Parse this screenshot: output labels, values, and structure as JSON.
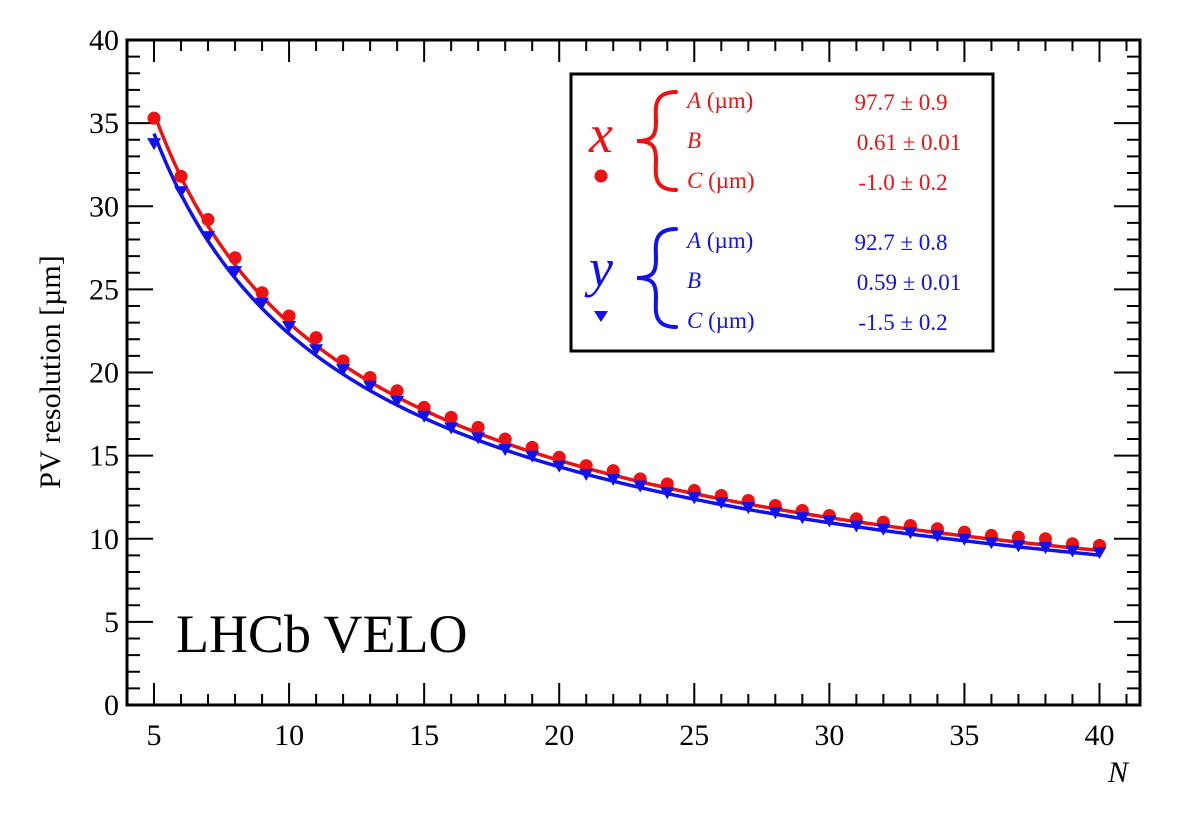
{
  "chart_data": {
    "type": "scatter",
    "ylabel": "PV resolution [µm]",
    "xlabel": "N",
    "xlim": [
      4,
      41.5
    ],
    "ylim": [
      0,
      40
    ],
    "x_ticks": [
      "5",
      "10",
      "15",
      "20",
      "25",
      "30",
      "35",
      "40"
    ],
    "y_ticks": [
      "0",
      "5",
      "10",
      "15",
      "20",
      "25",
      "30",
      "35",
      "40"
    ],
    "grid": false,
    "legend_position": "top-right",
    "annotation": "LHCb VELO",
    "x": [
      5,
      6,
      7,
      8,
      9,
      10,
      11,
      12,
      13,
      14,
      15,
      16,
      17,
      18,
      19,
      20,
      21,
      22,
      23,
      24,
      25,
      26,
      27,
      28,
      29,
      30,
      31,
      32,
      33,
      34,
      35,
      36,
      37,
      38,
      39,
      40
    ],
    "series": [
      {
        "name": "x",
        "marker": "circle",
        "color": "#ee1111",
        "values": [
          35.3,
          31.8,
          29.2,
          26.9,
          24.8,
          23.4,
          22.1,
          20.7,
          19.7,
          18.9,
          17.9,
          17.3,
          16.7,
          16.0,
          15.5,
          14.9,
          14.4,
          14.1,
          13.6,
          13.3,
          12.9,
          12.6,
          12.3,
          12.0,
          11.7,
          11.4,
          11.2,
          11.0,
          10.8,
          10.6,
          10.4,
          10.2,
          10.1,
          10.0,
          9.7,
          9.6
        ],
        "fit": {
          "A": 97.7,
          "B": 0.61,
          "C": -1.0
        },
        "params": [
          {
            "name": "A",
            "unit": "(µm)",
            "value": "97.7 ± 0.9"
          },
          {
            "name": "B",
            "unit": "",
            "value": "0.61 ± 0.01"
          },
          {
            "name": "C",
            "unit": "(µm)",
            "value": "-1.0 ± 0.2"
          }
        ]
      },
      {
        "name": "y",
        "marker": "triangle-down",
        "color": "#1111ee",
        "values": [
          33.8,
          30.9,
          28.2,
          26.1,
          24.2,
          22.8,
          21.4,
          20.2,
          19.2,
          18.3,
          17.4,
          16.7,
          16.1,
          15.4,
          15.0,
          14.4,
          13.9,
          13.6,
          13.2,
          12.8,
          12.5,
          12.2,
          11.9,
          11.6,
          11.3,
          11.1,
          10.8,
          10.6,
          10.4,
          10.2,
          10.0,
          9.8,
          9.6,
          9.5,
          9.3,
          9.2
        ],
        "fit": {
          "A": 92.7,
          "B": 0.59,
          "C": -1.5
        },
        "params": [
          {
            "name": "A",
            "unit": "(µm)",
            "value": "92.7 ± 0.8"
          },
          {
            "name": "B",
            "unit": "",
            "value": "0.59 ± 0.01"
          },
          {
            "name": "C",
            "unit": "(µm)",
            "value": "-1.5 ± 0.2"
          }
        ]
      }
    ]
  }
}
